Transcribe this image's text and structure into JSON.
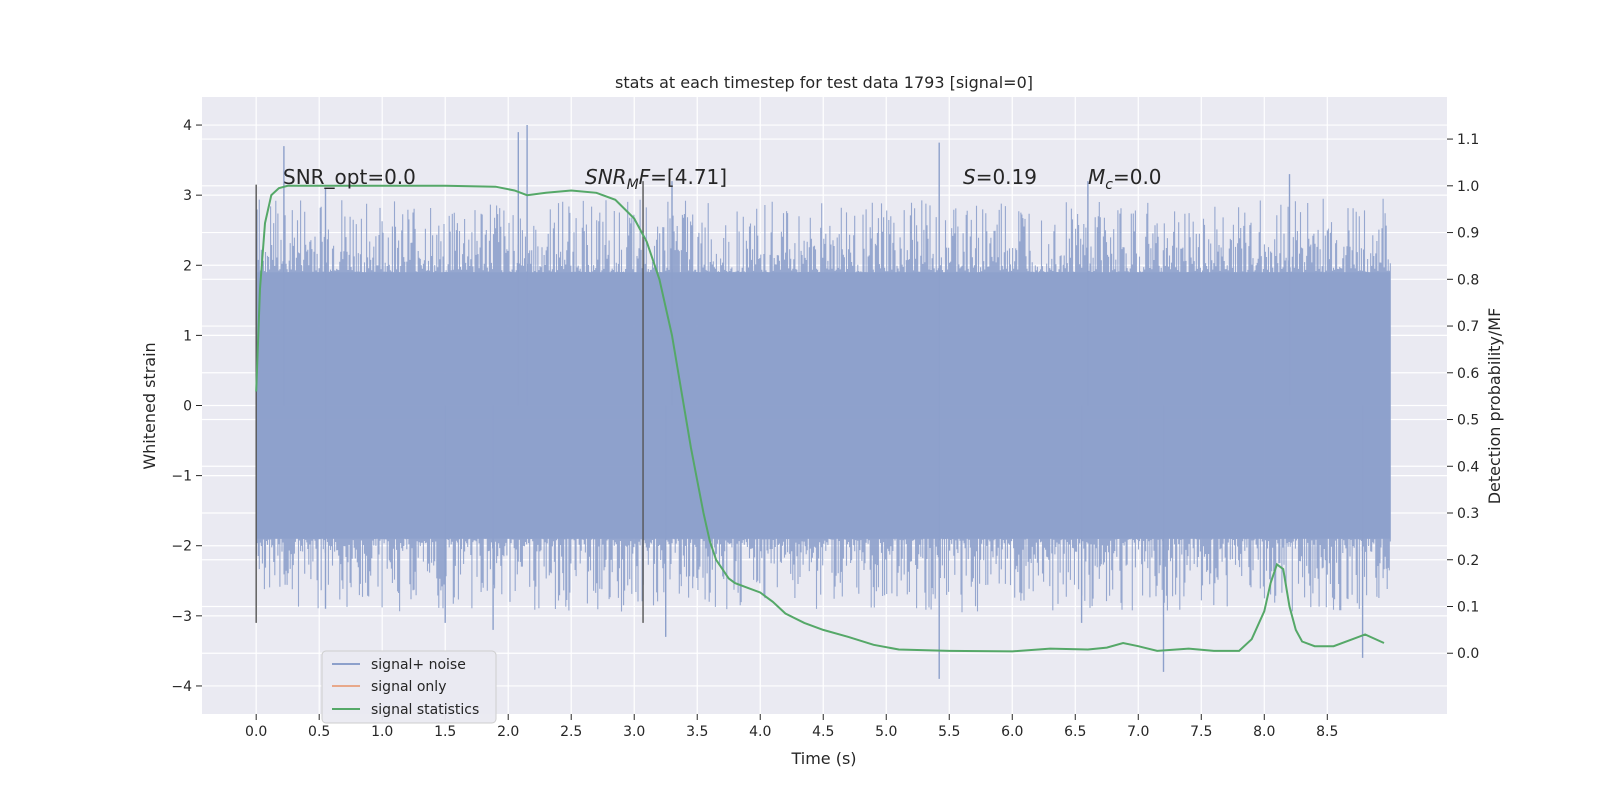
{
  "chart_data": {
    "type": "line",
    "title": "stats at each timestep for test data 1793 [signal=0]",
    "xlabel": "Time (s)",
    "ylabel_left": "Whitened strain",
    "ylabel_right": "Detection probability/MF",
    "xlim": [
      -0.43,
      9.45
    ],
    "ylim_left": [
      -4.4,
      4.4
    ],
    "ylim_right": [
      -0.13,
      1.19
    ],
    "x_ticks": [
      0.0,
      0.5,
      1.0,
      1.5,
      2.0,
      2.5,
      3.0,
      3.5,
      4.0,
      4.5,
      5.0,
      5.5,
      6.0,
      6.5,
      7.0,
      7.5,
      8.0,
      8.5
    ],
    "x_tick_labels": [
      "0.0",
      "0.5",
      "1.0",
      "1.5",
      "2.0",
      "2.5",
      "3.0",
      "3.5",
      "4.0",
      "4.5",
      "5.0",
      "5.5",
      "6.0",
      "6.5",
      "7.0",
      "7.5",
      "8.0",
      "8.5"
    ],
    "y_left_ticks": [
      4,
      3,
      2,
      1,
      0,
      -1,
      -2,
      -3,
      -4
    ],
    "y_left_tick_labels": [
      "4",
      "3",
      "2",
      "1",
      "0",
      "−1",
      "−2",
      "−3",
      "−4"
    ],
    "y_right_ticks": [
      1.1,
      1.0,
      0.9,
      0.8,
      0.7,
      0.6,
      0.5,
      0.4,
      0.3,
      0.2,
      0.1,
      0.0
    ],
    "y_right_tick_labels": [
      "1.1",
      "1.0",
      "0.9",
      "0.8",
      "0.7",
      "0.6",
      "0.5",
      "0.4",
      "0.3",
      "0.2",
      "0.1",
      "0.0"
    ],
    "series": [
      {
        "name": "signal+ noise",
        "color": "#8da0cb",
        "axis": "left",
        "x_range": [
          0.0,
          9.0
        ],
        "band": [
          -1.9,
          1.9
        ],
        "extremes": [
          [
            0.22,
            3.7
          ],
          [
            0.55,
            3.1
          ],
          [
            2.08,
            3.9
          ],
          [
            2.15,
            4.0
          ],
          [
            3.3,
            3.2
          ],
          [
            5.42,
            3.75
          ],
          [
            5.42,
            -3.9
          ],
          [
            6.6,
            3.2
          ],
          [
            7.2,
            -3.8
          ],
          [
            8.2,
            3.3
          ],
          [
            8.78,
            -3.6
          ],
          [
            0.55,
            -2.9
          ],
          [
            1.5,
            -3.1
          ],
          [
            1.88,
            -3.2
          ],
          [
            3.25,
            -3.3
          ],
          [
            6.55,
            -3.1
          ]
        ]
      },
      {
        "name": "signal only",
        "color": "#e8a88a",
        "axis": "left",
        "x": [],
        "y": []
      },
      {
        "name": "signal statistics",
        "color": "#55a868",
        "axis": "right",
        "x": [
          0.0,
          0.03,
          0.07,
          0.12,
          0.18,
          0.25,
          0.35,
          0.6,
          1.0,
          1.5,
          1.9,
          2.05,
          2.15,
          2.3,
          2.5,
          2.7,
          2.85,
          3.0,
          3.1,
          3.2,
          3.3,
          3.4,
          3.45,
          3.5,
          3.55,
          3.6,
          3.65,
          3.7,
          3.75,
          3.8,
          3.9,
          4.0,
          4.1,
          4.2,
          4.35,
          4.5,
          4.7,
          4.9,
          5.1,
          5.5,
          6.0,
          6.3,
          6.6,
          6.75,
          6.88,
          7.0,
          7.15,
          7.4,
          7.6,
          7.8,
          7.9,
          8.0,
          8.05,
          8.1,
          8.15,
          8.2,
          8.25,
          8.3,
          8.4,
          8.55,
          8.7,
          8.8,
          8.95
        ],
        "y": [
          0.56,
          0.78,
          0.92,
          0.98,
          0.995,
          1.0,
          1.0,
          1.0,
          1.0,
          1.0,
          0.998,
          0.99,
          0.98,
          0.985,
          0.99,
          0.985,
          0.97,
          0.93,
          0.88,
          0.8,
          0.68,
          0.52,
          0.44,
          0.37,
          0.3,
          0.24,
          0.2,
          0.18,
          0.16,
          0.15,
          0.14,
          0.13,
          0.11,
          0.085,
          0.065,
          0.05,
          0.035,
          0.018,
          0.008,
          0.005,
          0.004,
          0.01,
          0.008,
          0.012,
          0.022,
          0.015,
          0.005,
          0.01,
          0.005,
          0.005,
          0.03,
          0.09,
          0.15,
          0.19,
          0.18,
          0.1,
          0.05,
          0.025,
          0.015,
          0.015,
          0.03,
          0.04,
          0.022
        ]
      }
    ],
    "vlines": [
      {
        "x": 0.0,
        "y_range": [
          -3.1,
          3.15
        ],
        "color": "#555555"
      },
      {
        "x": 3.07,
        "y_range": [
          -3.1,
          3.2
        ],
        "color": "#555555"
      }
    ],
    "annotations": [
      {
        "key": "snr_opt",
        "text": "SNR_opt=0.0",
        "x": 0.2,
        "y": 3.2
      },
      {
        "key": "snr_mf",
        "text": "SNR_MF=[4.71]",
        "x": 2.6,
        "y": 3.2
      },
      {
        "key": "s",
        "text": "S=0.19",
        "x": 5.6,
        "y": 3.2
      },
      {
        "key": "mc",
        "text": "M_c=0.0",
        "x": 6.6,
        "y": 3.2
      }
    ],
    "legend": {
      "position": "lower-left",
      "entries": [
        {
          "label": "signal+ noise",
          "color": "#8da0cb"
        },
        {
          "label": "signal only",
          "color": "#e8a88a"
        },
        {
          "label": "signal statistics",
          "color": "#55a868"
        }
      ]
    },
    "grid": true,
    "background": "#eaeaf2"
  }
}
